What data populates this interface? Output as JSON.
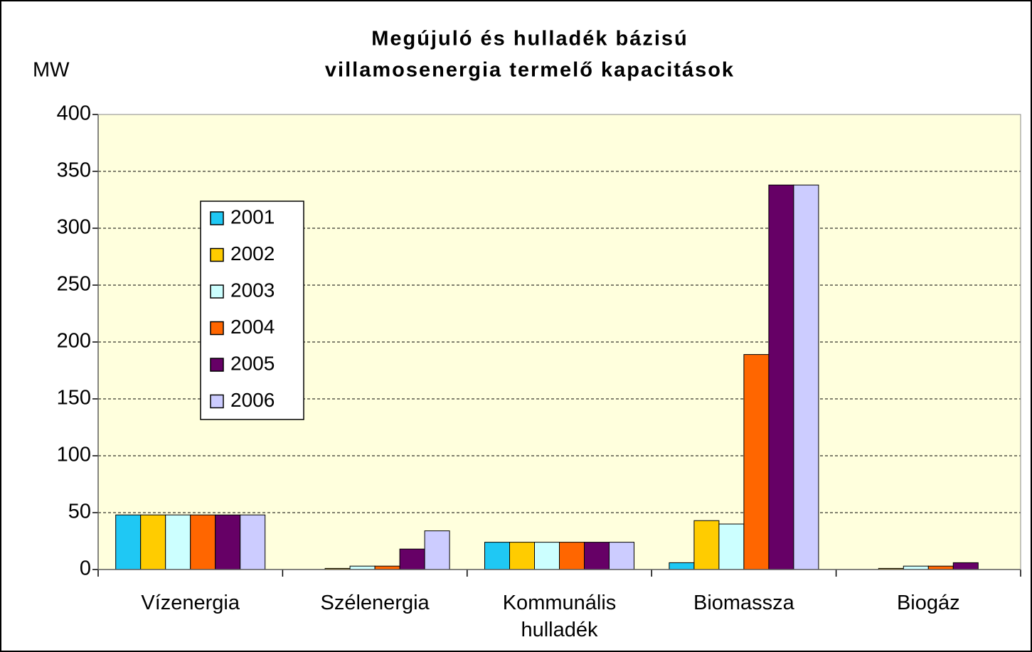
{
  "chart_data": {
    "type": "bar",
    "title": [
      "Megújuló és hulladék bázisú",
      "villamosenergia termelő kapacitások"
    ],
    "y_label": "MW",
    "categories": [
      "Vízenergia",
      "Szélenergia",
      "Kommunális hulladék",
      "Biomassza",
      "Biogáz"
    ],
    "series": [
      {
        "name": "2001",
        "color": "#1fc8f4",
        "values": [
          48,
          0,
          24,
          6,
          0
        ]
      },
      {
        "name": "2002",
        "color": "#ffcc00",
        "values": [
          48,
          1,
          24,
          43,
          1
        ]
      },
      {
        "name": "2003",
        "color": "#ccffff",
        "values": [
          48,
          3,
          24,
          40,
          3
        ]
      },
      {
        "name": "2004",
        "color": "#ff6600",
        "values": [
          48,
          3,
          24,
          189,
          3
        ]
      },
      {
        "name": "2005",
        "color": "#660066",
        "values": [
          48,
          18,
          24,
          338,
          6
        ]
      },
      {
        "name": "2006",
        "color": "#ccccff",
        "values": [
          48,
          34,
          24,
          338,
          0
        ]
      }
    ],
    "ylim": [
      0,
      400
    ],
    "yticks": [
      0,
      50,
      100,
      150,
      200,
      250,
      300,
      350,
      400
    ],
    "grid": true,
    "legend": "upper left",
    "background": "#ffffdd"
  }
}
